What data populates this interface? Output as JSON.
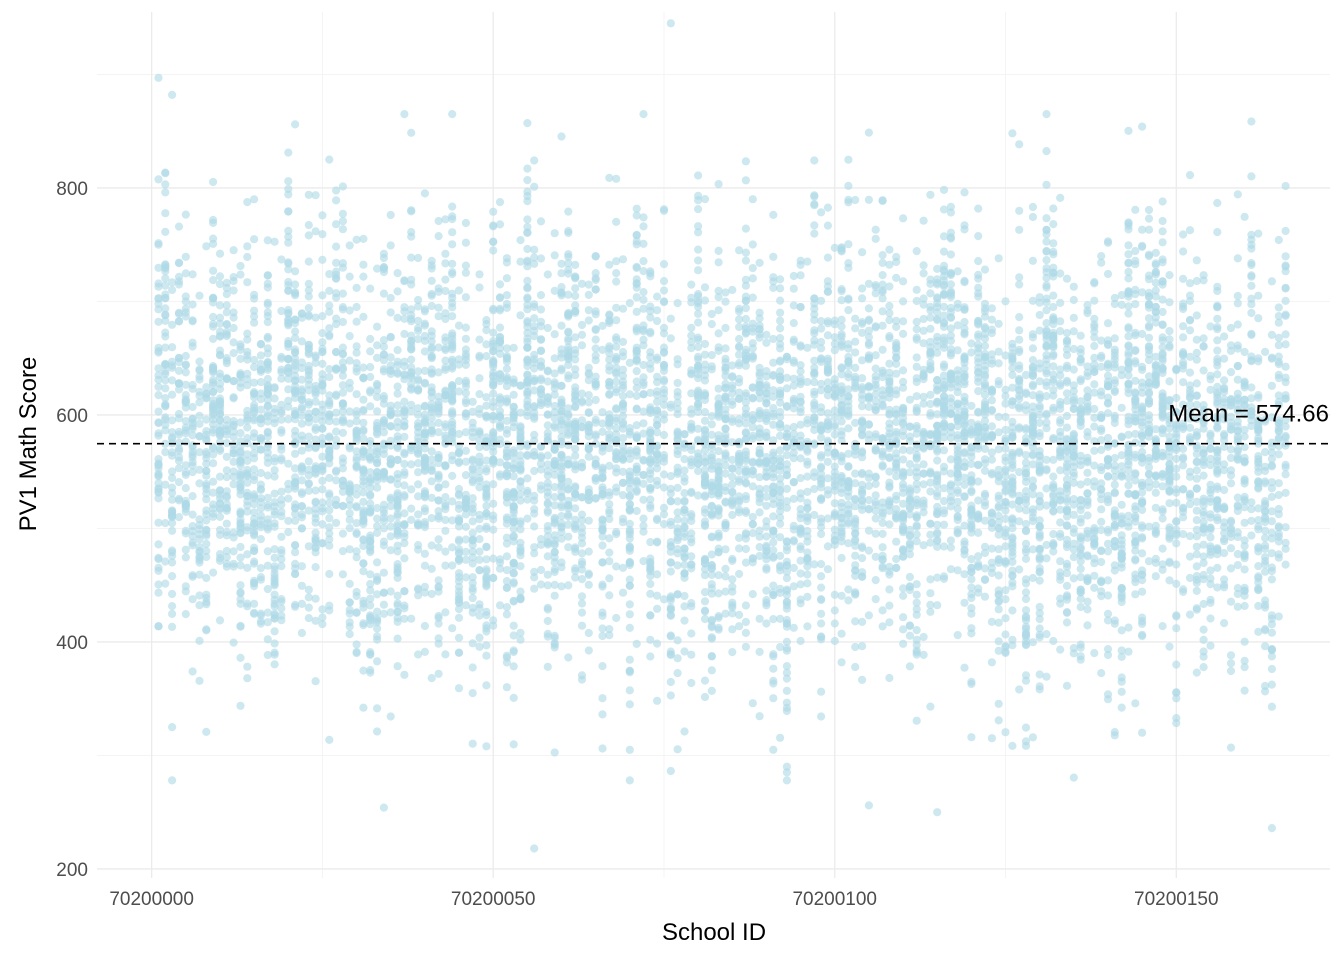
{
  "chart_data": {
    "type": "scatter",
    "title": "",
    "xlabel": "School ID",
    "ylabel": "PV1 Math Score",
    "xlim": [
      70199992,
      70200172.5
    ],
    "ylim": [
      192,
      955
    ],
    "x_ticks": [
      70200000,
      70200050,
      70200100,
      70200150
    ],
    "x_tick_labels": [
      "70200000",
      "70200050",
      "70200100",
      "70200150"
    ],
    "y_ticks": [
      200,
      400,
      600,
      800
    ],
    "y_tick_labels": [
      "200",
      "400",
      "600",
      "800"
    ],
    "grid": true,
    "point_color": "#ADD8E6",
    "point_alpha": 0.6,
    "school_id_range": [
      70200001,
      70200166
    ],
    "approx_points_per_school": 45,
    "score_distribution": {
      "center": 574,
      "spread": 92,
      "min": 218,
      "max": 945
    },
    "mean_line": {
      "value": 574.66,
      "style": "dashed",
      "color": "#000000",
      "label": "Mean = 574.66"
    },
    "notable_points": [
      {
        "x": 70200001,
        "y": 897
      },
      {
        "x": 70200003,
        "y": 882
      },
      {
        "x": 70200021,
        "y": 856
      },
      {
        "x": 70200076,
        "y": 945
      },
      {
        "x": 70200056,
        "y": 218
      },
      {
        "x": 70200164,
        "y": 236
      },
      {
        "x": 70200034,
        "y": 254
      },
      {
        "x": 70200105,
        "y": 256
      },
      {
        "x": 70200115,
        "y": 250
      }
    ]
  }
}
